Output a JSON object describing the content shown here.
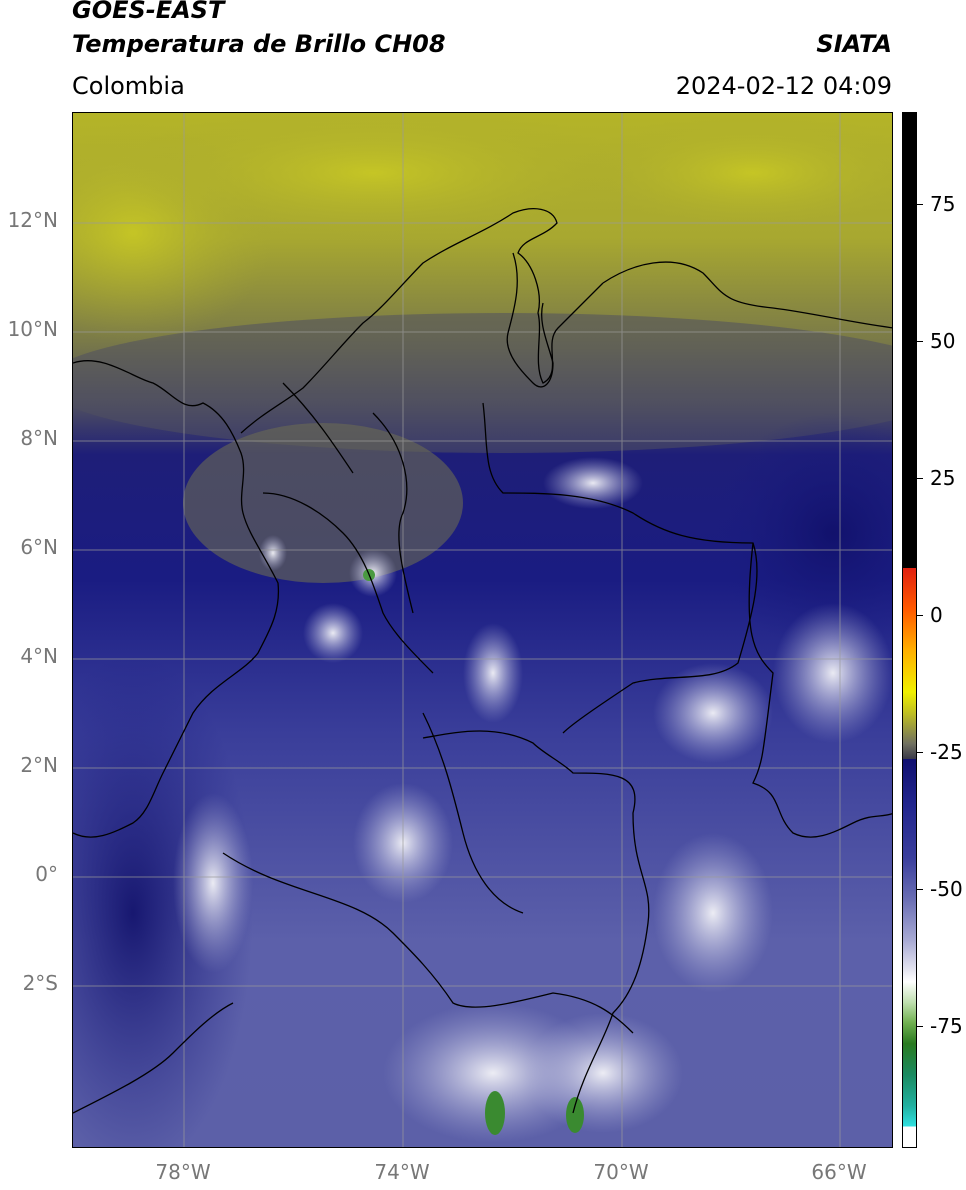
{
  "header": {
    "satellite": "GOES-EAST",
    "product": "Temperatura de Brillo CH08",
    "region": "Colombia",
    "agency": "SIATA",
    "datetime": "2024-02-12 04:09"
  },
  "axes": {
    "lat_labels": [
      "12°N",
      "10°N",
      "8°N",
      "6°N",
      "4°N",
      "2°N",
      "0°",
      "2°S"
    ],
    "lon_labels": [
      "78°W",
      "74°W",
      "70°W",
      "66°W"
    ]
  },
  "colorbar": {
    "labels": [
      "75",
      "50",
      "25",
      "0",
      "-25",
      "-50",
      "-75"
    ]
  },
  "colors": {
    "cold_blue": "#22268e",
    "upper_yellow": "#b8b830",
    "border_line": "#000000",
    "grid_line": "#9a9a9a"
  }
}
